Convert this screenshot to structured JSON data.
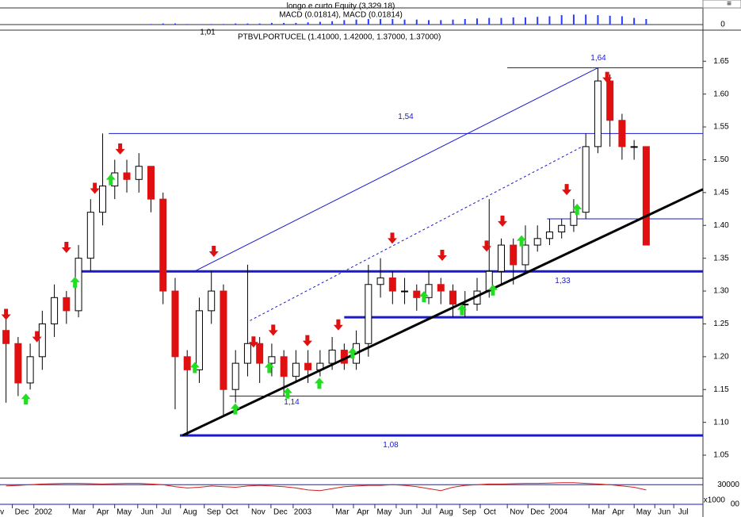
{
  "chart_data": [
    {
      "type": "bar",
      "title": "longo e curto Equity (3,329.18)",
      "subtitle": "MACD (0.01814), MACD (0.01814)",
      "annotation": "1,01",
      "values": [
        null,
        null,
        null,
        null,
        null,
        null,
        null,
        null,
        null,
        null,
        null,
        null,
        0.001,
        0.002,
        0.002,
        0.001,
        0.0005,
        0.001,
        0.001,
        0.002,
        0.002,
        0.002,
        0.003,
        0.003,
        0.003,
        0.004,
        0.005,
        0.006,
        0.008,
        0.009,
        0.01,
        0.01,
        0.01,
        0.009,
        0.009,
        0.008,
        0.008,
        0.009,
        0.01,
        0.011,
        0.012,
        0.012,
        0.013,
        0.013,
        0.014,
        0.015,
        0.017,
        0.018,
        0.018,
        0.017,
        0.016,
        0.015,
        0.012,
        0.01
      ],
      "color": "#2a3cff",
      "ylim": [
        -0.01,
        0.03
      ],
      "yticks": [
        0
      ]
    },
    {
      "type": "candlestick",
      "title": "PTBVLPORTUCEL (1.41000, 1.42000, 1.37000, 1.37000)",
      "open": [
        1.24,
        1.22,
        1.16,
        1.2,
        1.25,
        1.29,
        1.27,
        1.35,
        1.42,
        1.46,
        1.48,
        1.47,
        1.49,
        1.44,
        1.3,
        1.2,
        1.18,
        1.27,
        1.3,
        1.15,
        1.19,
        1.22,
        1.19,
        1.2,
        1.17,
        1.19,
        1.18,
        1.19,
        1.21,
        1.19,
        1.22,
        1.31,
        1.32,
        1.3,
        1.3,
        1.29,
        1.31,
        1.3,
        1.28,
        1.28,
        1.3,
        1.33,
        1.37,
        1.34,
        1.37,
        1.38,
        1.39,
        1.4,
        1.42,
        1.52,
        1.62,
        1.56,
        1.52,
        1.52
      ],
      "high": [
        1.26,
        1.23,
        1.22,
        1.27,
        1.31,
        1.3,
        1.37,
        1.44,
        1.54,
        1.5,
        1.5,
        1.51,
        1.49,
        1.45,
        1.32,
        1.21,
        1.29,
        1.33,
        1.31,
        1.21,
        1.34,
        1.23,
        1.22,
        1.21,
        1.21,
        1.21,
        1.21,
        1.23,
        1.22,
        1.24,
        1.34,
        1.35,
        1.33,
        1.32,
        1.31,
        1.33,
        1.32,
        1.31,
        1.3,
        1.32,
        1.44,
        1.38,
        1.38,
        1.4,
        1.4,
        1.41,
        1.41,
        1.44,
        1.54,
        1.64,
        1.63,
        1.57,
        1.53,
        1.52
      ],
      "low": [
        1.13,
        1.14,
        1.15,
        1.18,
        1.23,
        1.25,
        1.26,
        1.33,
        1.4,
        1.44,
        1.45,
        1.45,
        1.42,
        1.28,
        1.12,
        1.08,
        1.16,
        1.25,
        1.11,
        1.13,
        1.17,
        1.16,
        1.17,
        1.14,
        1.16,
        1.16,
        1.17,
        1.18,
        1.18,
        1.18,
        1.2,
        1.29,
        1.28,
        1.28,
        1.27,
        1.28,
        1.28,
        1.26,
        1.26,
        1.27,
        1.29,
        1.31,
        1.31,
        1.33,
        1.36,
        1.37,
        1.38,
        1.39,
        1.41,
        1.51,
        1.52,
        1.5,
        1.5,
        1.37
      ],
      "close": [
        1.22,
        1.16,
        1.2,
        1.25,
        1.29,
        1.27,
        1.35,
        1.42,
        1.46,
        1.48,
        1.47,
        1.49,
        1.44,
        1.3,
        1.2,
        1.18,
        1.27,
        1.3,
        1.15,
        1.19,
        1.22,
        1.19,
        1.2,
        1.17,
        1.19,
        1.18,
        1.19,
        1.21,
        1.19,
        1.22,
        1.31,
        1.32,
        1.3,
        1.3,
        1.29,
        1.31,
        1.3,
        1.28,
        1.28,
        1.3,
        1.33,
        1.37,
        1.34,
        1.37,
        1.38,
        1.39,
        1.4,
        1.42,
        1.52,
        1.62,
        1.56,
        1.52,
        1.52,
        1.37
      ],
      "up_color": "#ffffff",
      "down_color": "#e01010",
      "xlim": [
        -0.5,
        57.7
      ],
      "xticks": [
        {
          "value": -0.33,
          "label": "v"
        },
        {
          "value": 1.31,
          "label": "Dec"
        },
        {
          "value": 3.09,
          "label": "2002"
        },
        {
          "value": 6.04,
          "label": "Mar"
        },
        {
          "value": 8.01,
          "label": "Apr"
        },
        {
          "value": 9.78,
          "label": "May"
        },
        {
          "value": 11.69,
          "label": "Jun"
        },
        {
          "value": 13.26,
          "label": "Jul"
        },
        {
          "value": 15.23,
          "label": "Aug"
        },
        {
          "value": 17.2,
          "label": "Sep"
        },
        {
          "value": 18.71,
          "label": "Oct"
        },
        {
          "value": 20.88,
          "label": "Nov"
        },
        {
          "value": 22.72,
          "label": "Dec"
        },
        {
          "value": 24.56,
          "label": "2003"
        },
        {
          "value": 27.84,
          "label": "Mar"
        },
        {
          "value": 29.55,
          "label": "Apr"
        },
        {
          "value": 31.32,
          "label": "May"
        },
        {
          "value": 33.09,
          "label": "Jun"
        },
        {
          "value": 34.8,
          "label": "Jul"
        },
        {
          "value": 36.44,
          "label": "Aug"
        },
        {
          "value": 38.35,
          "label": "Sep"
        },
        {
          "value": 40.05,
          "label": "Oct"
        },
        {
          "value": 42.29,
          "label": "Nov"
        },
        {
          "value": 44.0,
          "label": "Dec"
        },
        {
          "value": 45.77,
          "label": "2004"
        },
        {
          "value": 49.05,
          "label": "Mar"
        },
        {
          "value": 50.69,
          "label": "Apr"
        },
        {
          "value": 52.79,
          "label": "May"
        },
        {
          "value": 54.5,
          "label": "Jun"
        },
        {
          "value": 56.07,
          "label": "Jul"
        }
      ],
      "ylim": [
        1.015,
        1.695
      ],
      "yticks": [
        1.05,
        {
          "value": 1.1,
          "label": "1.10"
        },
        1.15,
        {
          "value": 1.2,
          "label": "1.20"
        },
        1.25,
        {
          "value": 1.3,
          "label": "1.30"
        },
        1.35,
        {
          "value": 1.4,
          "label": "1.40"
        },
        1.45,
        {
          "value": 1.5,
          "label": "1.50"
        },
        1.55,
        {
          "value": 1.6,
          "label": "1.60"
        },
        1.65
      ],
      "levels": [
        {
          "value": 1.64,
          "label": "1,64",
          "from": 41.5,
          "width": 1
        },
        {
          "value": 1.54,
          "label": "1,54",
          "from": 8.5,
          "width": 1
        },
        {
          "value": 1.41,
          "from": 44.8,
          "width": 1
        },
        {
          "value": 1.33,
          "label": "1,33",
          "from": 5.7,
          "width": 3
        },
        {
          "value": 1.26,
          "from": 28.0,
          "width": 3
        },
        {
          "value": 1.14,
          "label": "1,14",
          "from": 18.5,
          "width": 1
        },
        {
          "value": 1.08,
          "label": "1,08",
          "from": 14.4,
          "width": 3
        }
      ],
      "level_color": "#1a1acc",
      "trendlines": [
        {
          "x": [
            14.6,
            57.7
          ],
          "y": [
            1.08,
            1.455
          ],
          "color": "#000000",
          "width": 3
        },
        {
          "x": [
            15.6,
            49.0
          ],
          "y": [
            1.33,
            1.64
          ],
          "color": "#1a1acc",
          "width": 1
        },
        {
          "x": [
            20.2,
            47.7
          ],
          "y": [
            1.255,
            1.52
          ],
          "color": "#1a1acc",
          "width": 1,
          "dashed": true
        }
      ],
      "sell_signals": {
        "color": "#e01010",
        "x": [
          0,
          2.56,
          5.0,
          7.35,
          9.45,
          17.2,
          20.49,
          22.12,
          24.95,
          27.51,
          31.98,
          36.11,
          39.79,
          41.1,
          46.42,
          49.77
        ],
        "y": [
          1.256,
          1.222,
          1.358,
          1.448,
          1.508,
          1.352,
          1.214,
          1.232,
          1.216,
          1.24,
          1.372,
          1.346,
          1.36,
          1.398,
          1.446,
          1.617
        ]
      },
      "buy_signals": {
        "color": "#22dd22",
        "x": [
          1.64,
          5.71,
          8.67,
          15.63,
          18.98,
          21.8,
          23.31,
          25.94,
          28.69,
          34.6,
          37.75,
          40.31,
          42.68,
          47.28
        ],
        "y": [
          1.144,
          1.322,
          1.478,
          1.192,
          1.129,
          1.192,
          1.153,
          1.168,
          1.214,
          1.3,
          1.28,
          1.31,
          1.385,
          1.433
        ]
      }
    },
    {
      "type": "line",
      "axis_unit": "x1000",
      "color": "#d02020",
      "ylim": [
        0,
        40000
      ],
      "yticks": [
        30000,
        {
          "value": 0,
          "label": "00"
        }
      ],
      "values": [
        28000,
        29000,
        30000,
        31000,
        31500,
        32000,
        32000,
        31500,
        31000,
        31500,
        32000,
        32000,
        31000,
        30000,
        27000,
        25000,
        26000,
        28000,
        27000,
        26000,
        28000,
        29000,
        28000,
        27000,
        25000,
        22000,
        21000,
        24000,
        27000,
        28000,
        29000,
        29000,
        30000,
        29000,
        27000,
        24000,
        21000,
        26000,
        29000,
        30000,
        31000,
        31000,
        31500,
        32000,
        32000,
        32500,
        33000,
        33000,
        32000,
        31000,
        30000,
        28000,
        26000,
        22000
      ]
    }
  ]
}
